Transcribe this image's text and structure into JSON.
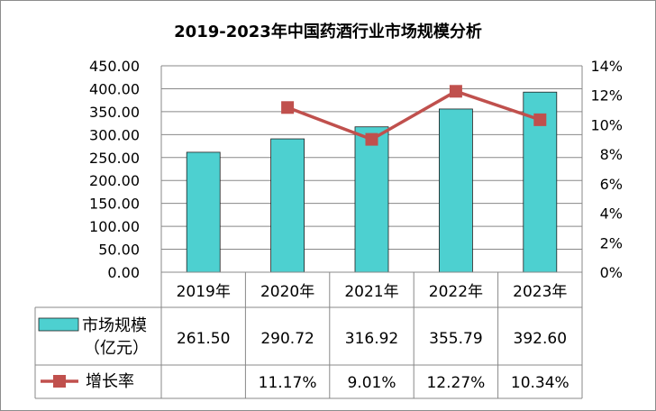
{
  "chart_data": {
    "type": "bar",
    "title": "2019-2023年中国药酒行业市场规模分析",
    "categories": [
      "2019年",
      "2020年",
      "2021年",
      "2022年",
      "2023年"
    ],
    "series": [
      {
        "name": "市场规模（亿元）",
        "kind": "bar",
        "axis": "left",
        "color": "#4dd0d0",
        "values": [
          261.5,
          290.72,
          316.92,
          355.79,
          392.6
        ],
        "value_labels": [
          "261.50",
          "290.72",
          "316.92",
          "355.79",
          "392.60"
        ]
      },
      {
        "name": "增长率",
        "kind": "line",
        "axis": "right",
        "color": "#c0504d",
        "values": [
          null,
          11.17,
          9.01,
          12.27,
          10.34
        ],
        "value_labels": [
          "",
          "11.17%",
          "9.01%",
          "12.27%",
          "10.34%"
        ]
      }
    ],
    "legend_labels": {
      "bar_line1": "市场规模",
      "bar_line2": "（亿元）",
      "line": "增长率"
    },
    "y_left": {
      "range": [
        0,
        450
      ],
      "ticks": [
        "0.00",
        "50.00",
        "100.00",
        "150.00",
        "200.00",
        "250.00",
        "300.00",
        "350.00",
        "400.00",
        "450.00"
      ]
    },
    "y_right": {
      "range": [
        0,
        14
      ],
      "ticks": [
        "0%",
        "2%",
        "4%",
        "6%",
        "8%",
        "10%",
        "12%",
        "14%"
      ]
    },
    "grid": true,
    "legend_placement": "data-table-below"
  }
}
